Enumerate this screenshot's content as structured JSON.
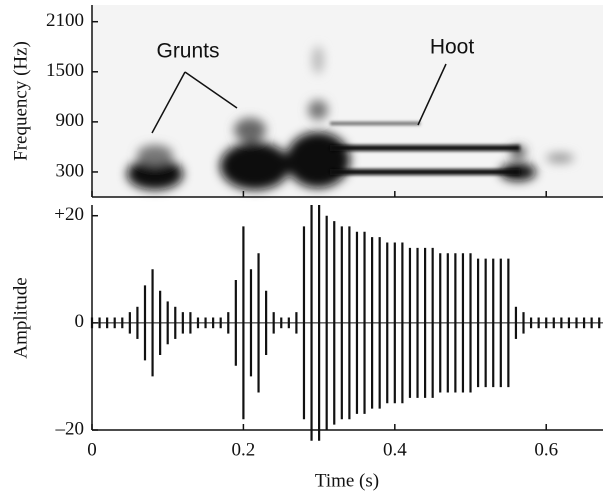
{
  "chart_data": [
    {
      "type": "spectrogram",
      "ylabel": "Frequency (Hz)",
      "ylim": [
        0,
        2300
      ],
      "yticks": [
        300,
        900,
        1500,
        2100
      ],
      "xlim": [
        0,
        0.675
      ],
      "annotations": [
        "Grunts",
        "Hoot"
      ]
    },
    {
      "type": "waveform",
      "ylabel": "Amplitude",
      "xlabel": "Time (s)",
      "xlim": [
        0,
        0.675
      ],
      "xticks": [
        0,
        0.2,
        0.4,
        0.6
      ],
      "ylim": [
        -20,
        22
      ],
      "yticks": [
        {
          "value": 20,
          "label": "+20"
        },
        0,
        {
          "value": -20,
          "label": "–20"
        }
      ],
      "color": "#111111",
      "x": [
        0,
        0.01,
        0.02,
        0.03,
        0.04,
        0.05,
        0.06,
        0.07,
        0.08,
        0.09,
        0.1,
        0.11,
        0.12,
        0.13,
        0.14,
        0.15,
        0.16,
        0.17,
        0.18,
        0.19,
        0.2,
        0.21,
        0.22,
        0.23,
        0.24,
        0.25,
        0.26,
        0.27,
        0.28,
        0.29,
        0.3,
        0.31,
        0.32,
        0.33,
        0.34,
        0.35,
        0.36,
        0.37,
        0.38,
        0.39,
        0.4,
        0.41,
        0.42,
        0.43,
        0.44,
        0.45,
        0.46,
        0.47,
        0.48,
        0.49,
        0.5,
        0.51,
        0.52,
        0.53,
        0.54,
        0.55,
        0.56,
        0.57,
        0.58,
        0.59,
        0.6,
        0.61,
        0.62,
        0.63,
        0.64,
        0.65,
        0.66,
        0.67
      ],
      "values": [
        1,
        1,
        1,
        1,
        1,
        2,
        3,
        7,
        10,
        6,
        4,
        3,
        2,
        2,
        1,
        1,
        1,
        1,
        2,
        8,
        18,
        10,
        13,
        6,
        2,
        1,
        1,
        2,
        18,
        22,
        22,
        20,
        19,
        18,
        18,
        17,
        17,
        16,
        16,
        15,
        15,
        15,
        14,
        14,
        14,
        14,
        13,
        13,
        13,
        13,
        13,
        12,
        12,
        12,
        12,
        12,
        3,
        2,
        1,
        1,
        1,
        1,
        1,
        1,
        1,
        1,
        1,
        1
      ]
    }
  ]
}
